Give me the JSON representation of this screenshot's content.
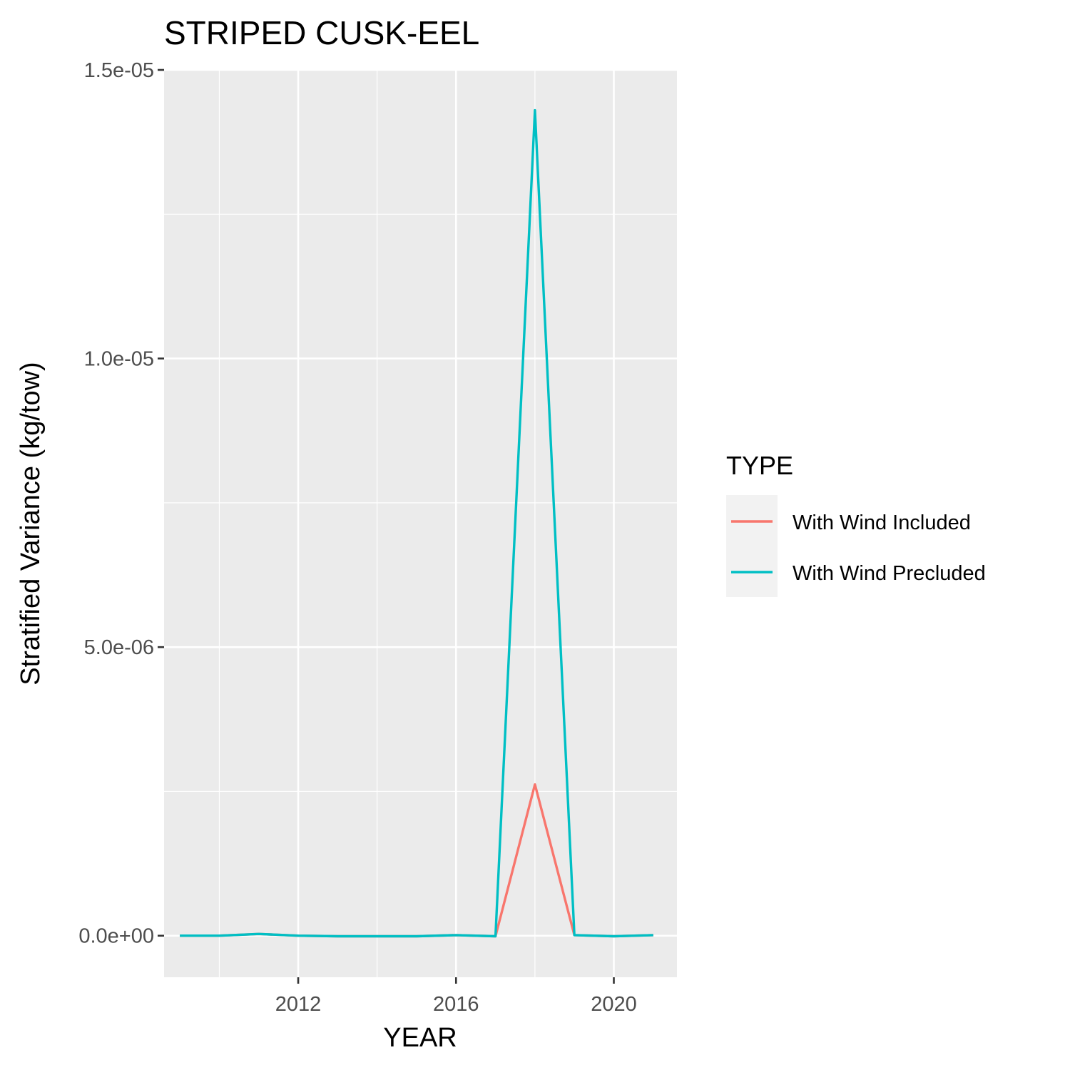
{
  "chart_data": {
    "type": "line",
    "title": "STRIPED CUSK-EEL",
    "xlabel": "YEAR",
    "ylabel": "Stratified Variance (kg/tow)",
    "x": [
      2009,
      2010,
      2011,
      2012,
      2013,
      2014,
      2015,
      2016,
      2017,
      2018,
      2019,
      2020,
      2021
    ],
    "xlim": [
      2008.6,
      2021.6
    ],
    "ylim": [
      -7.2e-07,
      1.5e-05
    ],
    "x_ticks": [
      2012,
      2016,
      2020
    ],
    "x_tick_labels": [
      "2012",
      "2016",
      "2020"
    ],
    "x_minor_ticks": [
      2010,
      2014,
      2018
    ],
    "y_ticks": [
      0,
      5e-06,
      1e-05,
      1.5e-05
    ],
    "y_tick_labels": [
      "0.0e+00",
      "5.0e-06",
      "1.0e-05",
      "1.5e-05"
    ],
    "y_minor_ticks": [
      2.5e-06,
      7.5e-06,
      1.25e-05
    ],
    "grid": true,
    "legend": {
      "title": "TYPE",
      "placement": "right"
    },
    "series": [
      {
        "name": "With Wind Included",
        "color": "#F8766D",
        "values": [
          0,
          0,
          3e-08,
          0,
          -1e-08,
          -1e-08,
          -1e-08,
          1e-08,
          -1e-08,
          2.62e-06,
          1e-08,
          -1e-08,
          1e-08
        ]
      },
      {
        "name": "With Wind Precluded",
        "color": "#00BFC4",
        "values": [
          0,
          0,
          3e-08,
          0,
          -1e-08,
          -1e-08,
          -1e-08,
          1e-08,
          -1e-08,
          1.43e-05,
          1e-08,
          -1e-08,
          1e-08
        ]
      }
    ]
  }
}
